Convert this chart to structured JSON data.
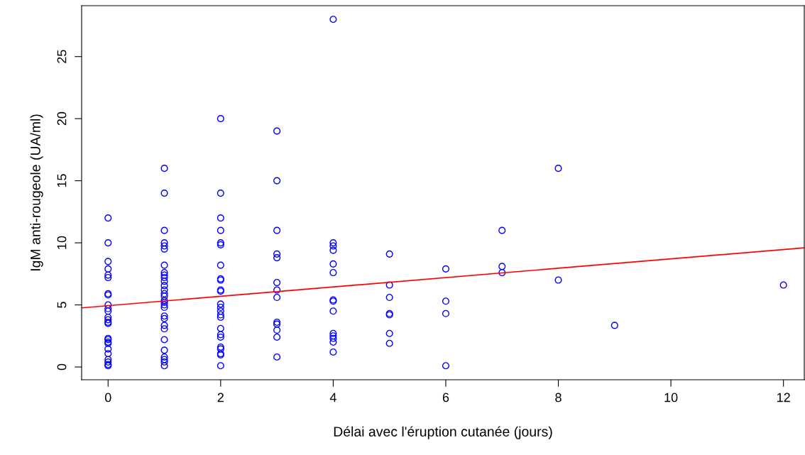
{
  "chart_data": {
    "type": "scatter",
    "xlabel": "Délai avec l'éruption cutanée (jours)",
    "ylabel": "IgM anti-rougeole (UA/ml)",
    "xlim": [
      -0.47,
      12.37
    ],
    "ylim": [
      -1.03,
      29.1
    ],
    "xticks": [
      0,
      2,
      4,
      6,
      8,
      10,
      12
    ],
    "yticks": [
      0,
      5,
      10,
      15,
      20,
      25
    ],
    "grid": false,
    "legend": false,
    "marker": "circle",
    "series": [
      {
        "color": "#0000ff",
        "x": [
          0,
          0,
          0,
          0,
          0,
          0,
          0,
          0,
          0,
          0,
          0,
          0,
          0,
          0,
          0,
          0,
          0,
          0,
          0,
          0,
          0,
          0,
          0,
          0,
          0,
          1,
          1,
          1,
          1,
          1,
          1,
          1,
          1,
          1,
          1,
          1,
          1,
          1,
          1,
          1,
          1,
          1,
          1,
          1,
          1,
          1,
          1,
          1,
          1,
          1,
          1,
          1,
          1,
          1,
          2,
          2,
          2,
          2,
          2,
          2,
          2,
          2,
          2,
          2,
          2,
          2,
          2,
          2,
          2,
          2,
          2,
          2,
          2,
          2,
          2,
          2,
          2,
          2,
          3,
          3,
          3,
          3,
          3,
          3,
          3,
          3,
          3,
          3,
          3,
          3,
          3,
          4,
          4,
          4,
          4,
          4,
          4,
          4,
          4,
          4,
          4,
          4,
          4,
          4,
          4,
          5,
          5,
          5,
          5,
          5,
          5,
          5,
          6,
          6,
          6,
          6,
          7,
          7,
          7,
          8,
          8,
          9,
          12
        ],
        "values": [
          12.0,
          10.0,
          8.5,
          7.9,
          7.4,
          7.2,
          5.9,
          5.8,
          5.0,
          4.7,
          4.5,
          4.0,
          3.8,
          3.6,
          3.5,
          2.3,
          2.2,
          2.0,
          1.9,
          1.45,
          1.07,
          0.6,
          0.4,
          0.2,
          0.1,
          16.0,
          14.0,
          11.0,
          10.0,
          9.75,
          9.5,
          8.2,
          7.6,
          7.4,
          7.2,
          6.9,
          6.55,
          6.2,
          5.9,
          5.7,
          5.35,
          5.2,
          5.0,
          4.8,
          4.1,
          3.9,
          3.35,
          3.07,
          2.2,
          1.35,
          0.8,
          0.6,
          0.4,
          0.1,
          20.0,
          14.0,
          12.0,
          11.0,
          10.0,
          9.84,
          8.2,
          7.1,
          7.0,
          6.2,
          6.1,
          5.07,
          4.8,
          4.5,
          4.2,
          4.0,
          3.1,
          2.6,
          2.4,
          1.6,
          1.45,
          1.07,
          0.97,
          0.1,
          19.0,
          15.0,
          11.0,
          9.1,
          8.8,
          6.8,
          6.2,
          5.6,
          3.6,
          3.45,
          2.97,
          2.4,
          0.8,
          28.0,
          10.0,
          9.75,
          9.4,
          8.3,
          7.6,
          5.4,
          5.3,
          4.5,
          2.7,
          2.5,
          2.3,
          2.0,
          1.2,
          9.1,
          6.6,
          5.6,
          4.3,
          4.2,
          2.7,
          1.9,
          7.9,
          5.3,
          4.3,
          0.1,
          11.0,
          8.1,
          7.6,
          16.0,
          7.0,
          3.35,
          6.6
        ]
      },
      {
        "type": "line",
        "color": "#ff0000",
        "marker": "none",
        "x": [
          -0.47,
          12.37
        ],
        "values": [
          4.76,
          9.6
        ]
      }
    ]
  }
}
